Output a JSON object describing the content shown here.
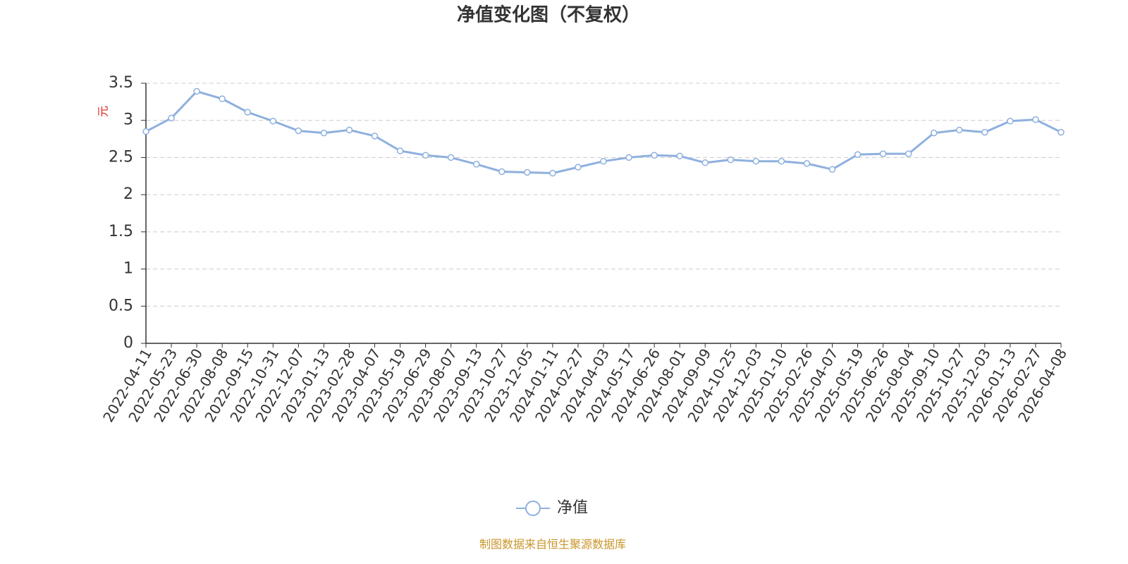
{
  "chart_data": {
    "type": "line",
    "title": "净值变化图（不复权）",
    "y_label": "元",
    "categories": [
      "2022-04-11",
      "2022-05-23",
      "2022-06-30",
      "2022-08-08",
      "2022-09-15",
      "2022-10-31",
      "2022-12-07",
      "2023-01-13",
      "2023-02-28",
      "2023-04-07",
      "2023-05-19",
      "2023-06-29",
      "2023-08-07",
      "2023-09-13",
      "2023-10-27",
      "2023-12-05",
      "2024-01-11",
      "2024-02-27",
      "2024-04-03",
      "2024-05-17",
      "2024-06-26",
      "2024-08-01",
      "2024-09-09",
      "2024-10-25",
      "2024-12-03",
      "2025-01-10",
      "2025-02-26",
      "2025-04-07",
      "2025-05-19",
      "2025-06-26",
      "2025-08-04",
      "2025-09-10",
      "2025-10-27",
      "2025-12-03",
      "2026-01-13",
      "2026-02-27",
      "2026-04-08"
    ],
    "series": [
      {
        "name": "净值",
        "color": "#8eb0de",
        "values": [
          2.85,
          3.03,
          3.39,
          3.29,
          3.11,
          2.99,
          2.86,
          2.83,
          2.87,
          2.79,
          2.59,
          2.53,
          2.5,
          2.41,
          2.31,
          2.3,
          2.29,
          2.37,
          2.45,
          2.5,
          2.53,
          2.52,
          2.43,
          2.47,
          2.45,
          2.45,
          2.42,
          2.34,
          2.54,
          2.55,
          2.55,
          2.83,
          2.87,
          2.84,
          2.99,
          3.01,
          2.84
        ]
      }
    ],
    "ylim": [
      0,
      3.5
    ],
    "yticks": [
      0,
      0.5,
      1,
      1.5,
      2,
      2.5,
      3,
      3.5
    ],
    "grid": true,
    "legend": "bottom",
    "source": "制图数据来自恒生聚源数据库"
  }
}
